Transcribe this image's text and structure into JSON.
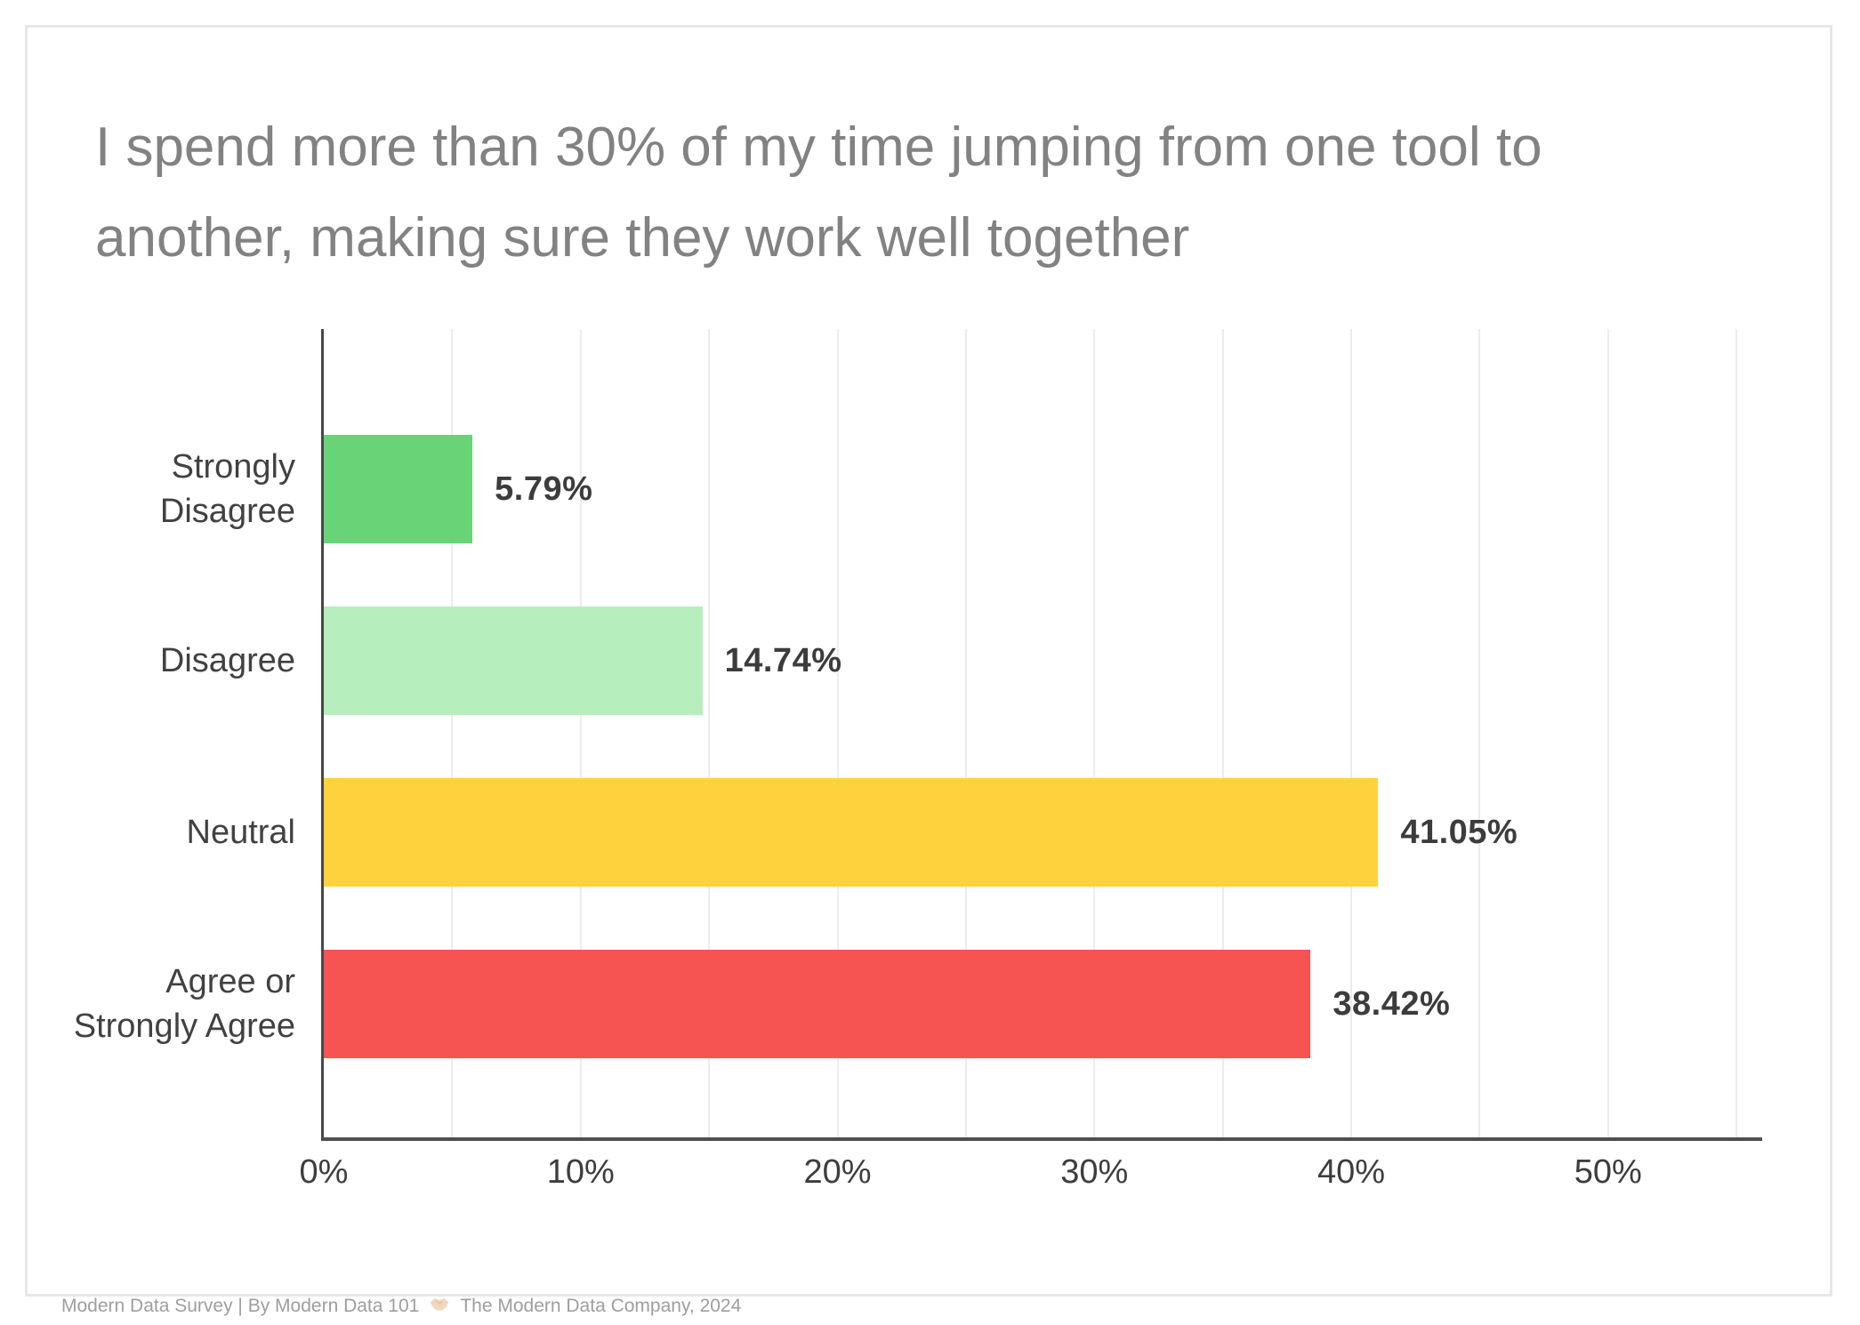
{
  "title": {
    "line1": "I spend more than 30% of my time jumping from one tool to",
    "line2": "another, making sure they work well together"
  },
  "chart_data": {
    "type": "bar",
    "orientation": "horizontal",
    "title": "I spend more than 30% of my time jumping from one tool to another, making sure they work well together",
    "categories": [
      "Strongly Disagree",
      "Disagree",
      "Neutral",
      "Agree or Strongly Agree"
    ],
    "category_label_lines": [
      [
        "Strongly",
        "Disagree"
      ],
      [
        "Disagree"
      ],
      [
        "Neutral"
      ],
      [
        "Agree or",
        "Strongly Agree"
      ]
    ],
    "values": [
      5.79,
      14.74,
      41.05,
      38.42
    ],
    "value_labels": [
      "5.79%",
      "14.74%",
      "41.05%",
      "38.42%"
    ],
    "bar_colors": [
      "#69d377",
      "#b6eebe",
      "#fdd23c",
      "#f65452"
    ],
    "xlabel": "",
    "ylabel": "",
    "xlim": [
      0,
      56
    ],
    "x_ticks": [
      {
        "label": "0%",
        "value": 0
      },
      {
        "label": "10%",
        "value": 10
      },
      {
        "label": "20%",
        "value": 20
      },
      {
        "label": "30%",
        "value": 30
      },
      {
        "label": "40%",
        "value": 40
      },
      {
        "label": "50%",
        "value": 50
      }
    ],
    "gridline_values": [
      5,
      10,
      15,
      20,
      25,
      30,
      35,
      40,
      45,
      50,
      55
    ],
    "grid": "vertical",
    "legend": "none"
  },
  "footer": {
    "left_text": "Modern Data Survey | By Modern Data 101",
    "right_text": "The Modern Data Company, 2024",
    "handshake_icon": "handshake-emoji",
    "handshake_color": "#f1d7bd"
  },
  "colors": {
    "title_text": "#828282",
    "category_text": "#414141",
    "value_text": "#3c3c3c",
    "tick_text": "#3d3d3d",
    "axis_line": "#4f4f4f",
    "gridline": "#ececec",
    "card_border": "#e7e7e7",
    "footer_text": "#9e9e9e"
  }
}
